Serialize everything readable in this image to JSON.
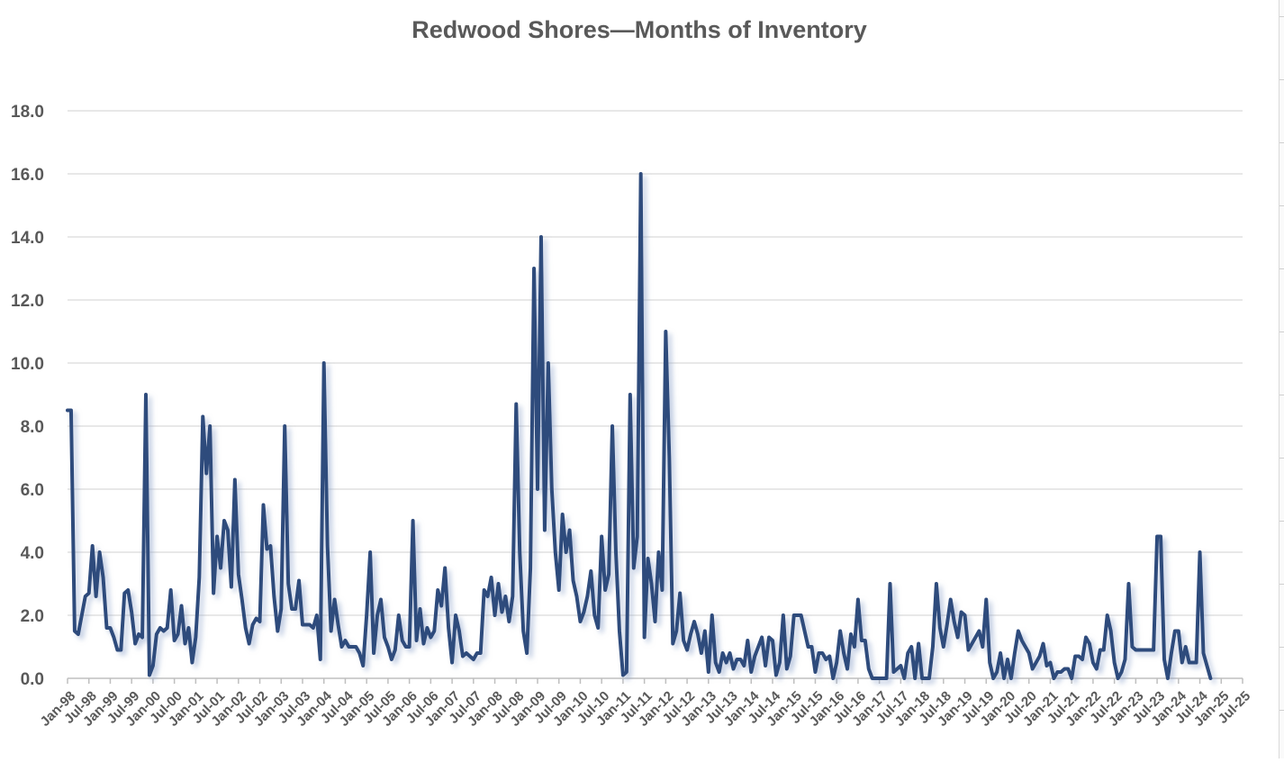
{
  "chart_data": {
    "type": "line",
    "title": "Redwood Shores—Months of Inventory",
    "xlabel": "",
    "ylabel": "",
    "ylim": [
      0,
      18
    ],
    "y_ticks": [
      "0.0",
      "2.0",
      "4.0",
      "6.0",
      "8.0",
      "10.0",
      "12.0",
      "14.0",
      "16.0",
      "18.0"
    ],
    "x_ticks": [
      "Jan-98",
      "Jul-98",
      "Jan-99",
      "Jul-99",
      "Jan-00",
      "Jul-00",
      "Jan-01",
      "Jul-01",
      "Jan-02",
      "Jul-02",
      "Jan-03",
      "Jul-03",
      "Jan-04",
      "Jul-04",
      "Jan-05",
      "Jul-05",
      "Jan-06",
      "Jul-06",
      "Jan-07",
      "Jul-07",
      "Jan-08",
      "Jul-08",
      "Jan-09",
      "Jul-09",
      "Jan-10",
      "Jul-10",
      "Jan-11",
      "Jul-11",
      "Jan-12",
      "Jul-12",
      "Jan-13",
      "Jul-13",
      "Jan-14",
      "Jul-14",
      "Jan-15",
      "Jul-15",
      "Jan-16",
      "Jul-16",
      "Jan-17",
      "Jul-17",
      "Jan-18",
      "Jul-18",
      "Jan-19",
      "Jul-19",
      "Jan-20",
      "Jul-20",
      "Jan-21",
      "Jul-21",
      "Jan-22",
      "Jul-22",
      "Jan-23",
      "Jul-23",
      "Jan-24",
      "Jul-24",
      "Jan-25",
      "Jul-25"
    ],
    "grid": true,
    "legend": "none",
    "line_color": "#2f4b7c",
    "series": [
      {
        "x_start": "Jan-98",
        "x_step": "month",
        "values": [
          8.5,
          8.5,
          1.5,
          1.4,
          2.0,
          2.6,
          2.7,
          4.2,
          2.6,
          4.0,
          3.2,
          1.6,
          1.6,
          1.3,
          0.9,
          0.9,
          2.7,
          2.8,
          2.1,
          1.1,
          1.4,
          1.3,
          9.0,
          0.1,
          0.4,
          1.4,
          1.6,
          1.5,
          1.6,
          2.8,
          1.2,
          1.4,
          2.3,
          1.1,
          1.6,
          0.5,
          1.3,
          3.2,
          8.3,
          6.5,
          8.0,
          2.7,
          4.5,
          3.5,
          5.0,
          4.7,
          2.9,
          6.3,
          3.3,
          2.5,
          1.6,
          1.1,
          1.7,
          1.9,
          1.8,
          5.5,
          4.1,
          4.2,
          2.6,
          1.5,
          2.2,
          8.0,
          3.0,
          2.2,
          2.2,
          3.1,
          1.7,
          1.7,
          1.7,
          1.6,
          2.0,
          0.6,
          10.0,
          4.2,
          1.5,
          2.5,
          1.7,
          1.0,
          1.2,
          1.0,
          1.0,
          1.0,
          0.8,
          0.4,
          2.0,
          4.0,
          0.8,
          2.0,
          2.5,
          1.3,
          1.0,
          0.6,
          0.9,
          2.0,
          1.2,
          1.0,
          1.0,
          5.0,
          1.2,
          2.2,
          1.1,
          1.6,
          1.3,
          1.5,
          2.8,
          2.3,
          3.5,
          1.6,
          0.5,
          2.0,
          1.5,
          0.7,
          0.8,
          0.7,
          0.6,
          0.8,
          0.8,
          2.8,
          2.6,
          3.2,
          2.0,
          3.0,
          2.1,
          2.6,
          1.8,
          2.6,
          8.7,
          4.0,
          1.5,
          0.8,
          3.5,
          13.0,
          6.0,
          14.0,
          4.7,
          10.0,
          6.0,
          4.0,
          2.8,
          5.2,
          4.0,
          4.7,
          3.1,
          2.6,
          1.8,
          2.1,
          2.6,
          3.4,
          2.0,
          1.6,
          4.5,
          2.8,
          3.3,
          8.0,
          4.0,
          1.5,
          0.1,
          0.2,
          9.0,
          3.5,
          4.5,
          16.0,
          1.3,
          3.8,
          3.0,
          1.8,
          4.0,
          2.8,
          11.0,
          7.0,
          1.1,
          1.5,
          2.7,
          1.2,
          0.9,
          1.4,
          1.8,
          1.4,
          0.8,
          1.5,
          0.2,
          2.0,
          0.5,
          0.2,
          0.8,
          0.5,
          0.8,
          0.3,
          0.6,
          0.6,
          0.4,
          1.2,
          0.2,
          0.7,
          1.0,
          1.3,
          0.4,
          1.3,
          1.2,
          0.1,
          0.5,
          2.0,
          0.3,
          0.7,
          2.0,
          2.0,
          2.0,
          1.5,
          1.0,
          1.0,
          0.2,
          0.8,
          0.8,
          0.6,
          0.7,
          0.0,
          0.5,
          1.5,
          0.8,
          0.3,
          1.4,
          1.0,
          2.5,
          1.2,
          1.2,
          0.3,
          0.0,
          0.0,
          0.0,
          0.0,
          0.0,
          3.0,
          0.2,
          0.3,
          0.4,
          0.0,
          0.8,
          1.0,
          0.0,
          1.1,
          0.0,
          0.0,
          0.0,
          1.0,
          3.0,
          1.6,
          1.0,
          1.7,
          2.5,
          1.8,
          1.3,
          2.1,
          2.0,
          0.9,
          1.1,
          1.3,
          1.5,
          1.0,
          2.5,
          0.5,
          0.0,
          0.2,
          0.8,
          0.0,
          0.6,
          0.0,
          0.8,
          1.5,
          1.2,
          1.0,
          0.8,
          0.3,
          0.5,
          0.7,
          1.1,
          0.4,
          0.5,
          0.0,
          0.2,
          0.2,
          0.3,
          0.3,
          0.0,
          0.7,
          0.7,
          0.6,
          1.3,
          1.1,
          0.5,
          0.3,
          0.9,
          0.9,
          2.0,
          1.5,
          0.5,
          0.0,
          0.2,
          0.6,
          3.0,
          1.0,
          0.9,
          0.9,
          0.9,
          0.9,
          0.9,
          0.9,
          4.5,
          4.5,
          0.6,
          0.0,
          0.8,
          1.5,
          1.5,
          0.5,
          1.0,
          0.5,
          0.5,
          0.5,
          4.0,
          0.8,
          0.4,
          0.0
        ]
      }
    ]
  }
}
